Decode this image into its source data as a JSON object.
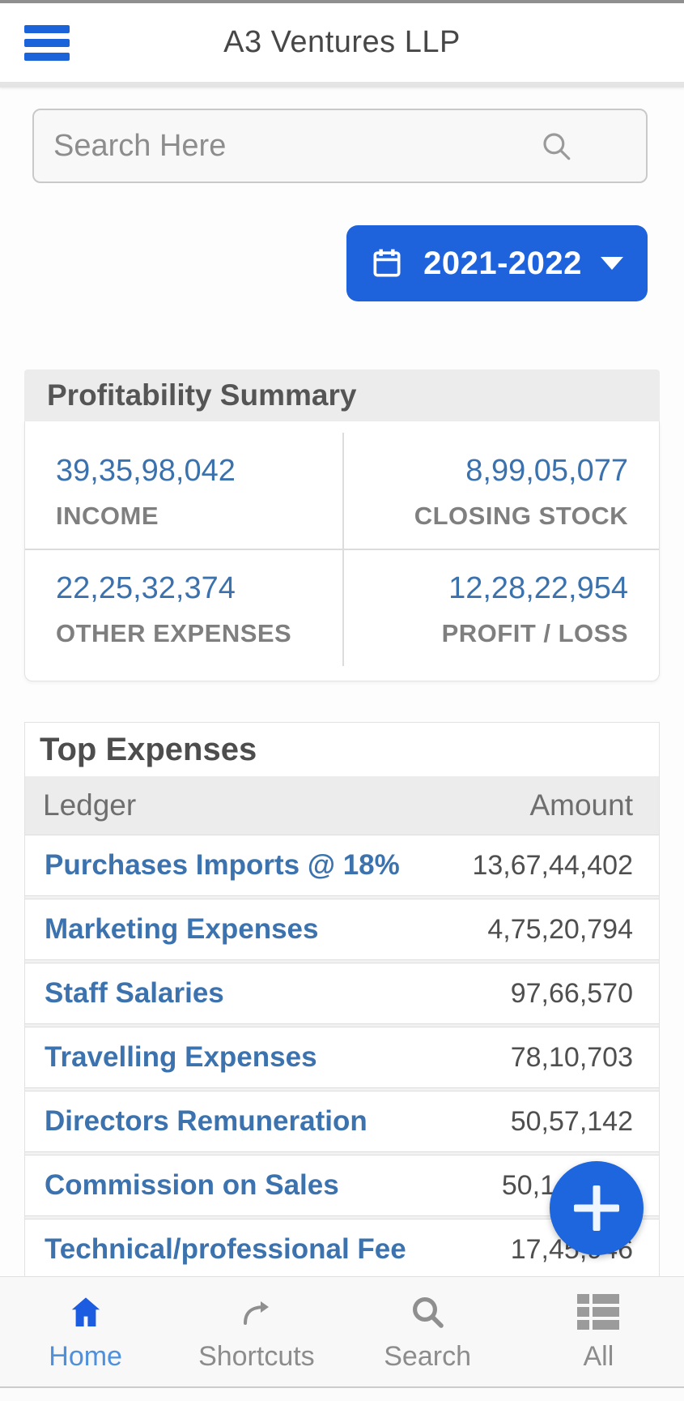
{
  "header": {
    "title": "A3 Ventures LLP"
  },
  "search": {
    "placeholder": "Search Here"
  },
  "fiscal_year_button": {
    "label": "2021-2022"
  },
  "profitability_summary": {
    "title": "Profitability Summary",
    "cells": [
      {
        "value": "39,35,98,042",
        "label": "INCOME"
      },
      {
        "value": "8,99,05,077",
        "label": "CLOSING STOCK"
      },
      {
        "value": "22,25,32,374",
        "label": "OTHER EXPENSES"
      },
      {
        "value": "12,28,22,954",
        "label": "PROFIT / LOSS"
      }
    ]
  },
  "top_expenses": {
    "title": "Top Expenses",
    "columns": {
      "ledger": "Ledger",
      "amount": "Amount"
    },
    "rows": [
      {
        "ledger": "Purchases Imports @ 18%",
        "amount": "13,67,44,402",
        "obscured": false
      },
      {
        "ledger": "Marketing Expenses",
        "amount": "4,75,20,794",
        "obscured": false
      },
      {
        "ledger": "Staff Salaries",
        "amount": "97,66,570",
        "obscured": false
      },
      {
        "ledger": "Travelling Expenses",
        "amount": "78,10,703",
        "obscured": false
      },
      {
        "ledger": "Directors Remuneration",
        "amount": "50,57,142",
        "obscured": false
      },
      {
        "ledger": "Commission on Sales",
        "amount": "50,1",
        "obscured": true
      },
      {
        "ledger": "Technical/professional Fee",
        "amount": "17,45,946",
        "obscured": false
      }
    ]
  },
  "fab": {
    "label": "+"
  },
  "bottom_nav": {
    "items": [
      {
        "label": "Home",
        "icon": "home-icon",
        "active": true
      },
      {
        "label": "Shortcuts",
        "icon": "shortcuts-icon",
        "active": false
      },
      {
        "label": "Search",
        "icon": "search-icon",
        "active": false
      },
      {
        "label": "All",
        "icon": "all-icon",
        "active": false
      }
    ]
  },
  "colors": {
    "accent_blue": "#1e63dc",
    "value_blue": "#3b72ad",
    "active_nav_blue": "#4e90dc",
    "header_gray": "#ececec"
  }
}
